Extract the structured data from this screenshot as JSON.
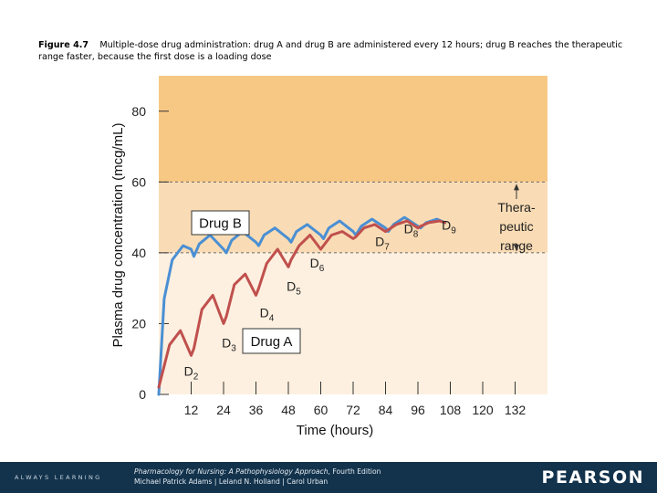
{
  "caption": {
    "label": "Figure 4.7",
    "text": "Multiple-dose drug administration: drug A and drug B are administered every 12 hours; drug B reaches the therapeutic range faster, because the first dose is a loading dose"
  },
  "chart_data": {
    "type": "line",
    "xlabel": "Time (hours)",
    "ylabel": "Plasma drug concentration (mcg/mL)",
    "xlim": [
      0,
      144
    ],
    "ylim": [
      0,
      90
    ],
    "xticks": [
      12,
      24,
      36,
      48,
      60,
      72,
      84,
      96,
      108,
      120,
      132
    ],
    "yticks": [
      0,
      20,
      40,
      60,
      80
    ],
    "therapeutic_range": {
      "low": 40,
      "high": 60,
      "label_lines": [
        "Thera-",
        "peutic",
        "range"
      ]
    },
    "series": [
      {
        "name": "Drug B",
        "color": "#4a8fd4",
        "x": [
          0,
          2,
          5,
          9,
          12,
          13,
          15,
          19,
          24,
          25,
          27,
          31,
          36,
          37,
          39,
          43,
          48,
          49,
          51,
          55,
          60,
          61,
          63,
          67,
          72,
          73,
          75,
          79,
          84,
          85,
          87,
          91,
          96,
          97,
          99,
          103,
          106
        ],
        "y": [
          0,
          27,
          38,
          42,
          41,
          39,
          42.5,
          45,
          41,
          40,
          43.5,
          46,
          43,
          42,
          45,
          47,
          44,
          43,
          46,
          48,
          45,
          44,
          47,
          49,
          46,
          45,
          47.5,
          49.5,
          47,
          46,
          48,
          50,
          47.5,
          47,
          48.5,
          49.5,
          48.5
        ]
      },
      {
        "name": "Drug A",
        "color": "#c0504d",
        "x": [
          0,
          4,
          8,
          12,
          13,
          16,
          20,
          24,
          25,
          28,
          32,
          36,
          37,
          40,
          44,
          48,
          49,
          52,
          56,
          60,
          61,
          64,
          68,
          72,
          73,
          76,
          80,
          84,
          85,
          88,
          92,
          96,
          97,
          100,
          104,
          106
        ],
        "y": [
          2,
          14,
          18,
          11,
          13,
          24,
          28,
          20,
          22,
          31,
          34,
          28,
          30,
          37,
          41,
          36,
          38,
          42,
          45,
          41,
          42,
          45,
          46,
          44,
          44.5,
          47,
          48,
          46,
          46.5,
          48,
          49,
          47,
          47.5,
          48.5,
          49,
          48.5
        ]
      }
    ],
    "dose_annotations": [
      {
        "label": "D",
        "sub": "2",
        "x": 12,
        "y": 11
      },
      {
        "label": "D",
        "sub": "3",
        "x": 24,
        "y": 20
      },
      {
        "label": "D",
        "sub": "4",
        "x": 36,
        "y": 28
      },
      {
        "label": "D",
        "sub": "5",
        "x": 48,
        "y": 36
      },
      {
        "label": "D",
        "sub": "6",
        "x": 60,
        "y": 41
      },
      {
        "label": "D",
        "sub": "7",
        "x": 72,
        "y": 44
      },
      {
        "label": "D",
        "sub": "8",
        "x": 84,
        "y": 46
      },
      {
        "label": "D",
        "sub": "9",
        "x": 96,
        "y": 47
      }
    ],
    "legend": {
      "drug_b": "Drug B",
      "drug_a": "Drug A"
    },
    "colors": {
      "above_range": "#f7c884",
      "therapeutic_band": "#f9dcb5",
      "below_range": "#fdf0e0",
      "dashed_line": "#6b6b6b"
    }
  },
  "footer": {
    "tagline": "ALWAYS LEARNING",
    "book_title": "Pharmacology for Nursing: A Pathophysiology Approach",
    "edition": ", Fourth Edition",
    "authors": "Michael Patrick Adams | Leland N. Holland | Carol Urban",
    "brand": "PEARSON",
    "background": "#13334d"
  }
}
